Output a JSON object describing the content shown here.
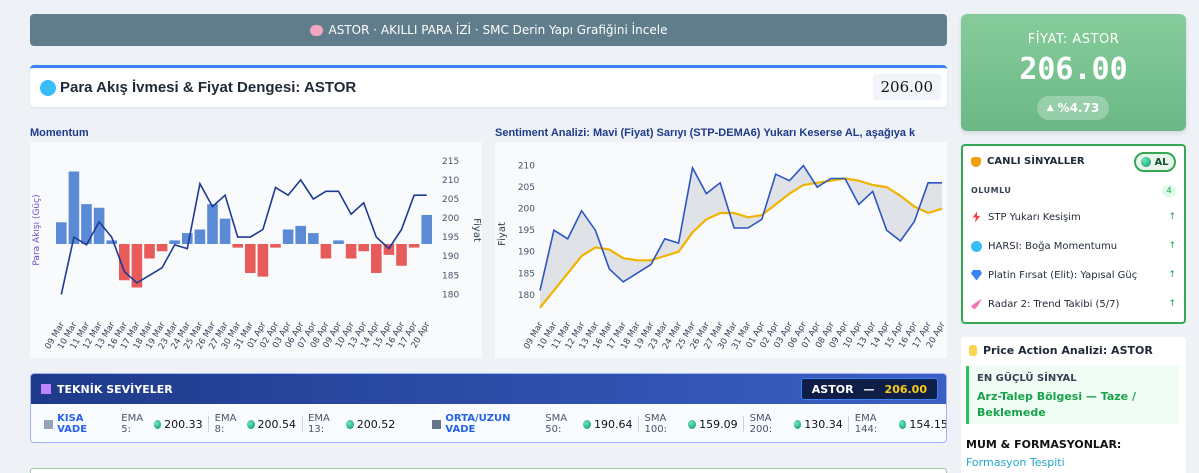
{
  "banner": {
    "text": "ASTOR · AKILLI PARA İZİ · SMC Derin Yapı Grafiğini İncele"
  },
  "flow_header": {
    "title": "Para Akış İvmesi & Fiyat Dengesi: ASTOR",
    "price": "206.00"
  },
  "charts_meta": {
    "momentum_title": "Momentum",
    "sentiment_title": "Sentiment Analizi: Mavi (Fiyat) Sarıyı (STP-DEMA6) Yukarı Keserse AL, aşağıya kese..."
  },
  "chart_data": [
    {
      "type": "bar+line",
      "title": "Momentum",
      "ylabel_left": "Para Akışı (Güç)",
      "ylabel_right": "Fiyat",
      "categories": [
        "09 Mar",
        "10 Mar",
        "11 Mar",
        "12 Mar",
        "13 Mar",
        "16 Mar",
        "17 Mar",
        "18 Mar",
        "19 Mar",
        "23 Mar",
        "24 Mar",
        "25 Mar",
        "26 Mar",
        "27 Mar",
        "30 Mar",
        "31 Mar",
        "01 Apr",
        "02 Apr",
        "03 Apr",
        "06 Apr",
        "07 Apr",
        "08 Apr",
        "09 Apr",
        "10 Apr",
        "13 Apr",
        "14 Apr",
        "15 Apr",
        "16 Apr",
        "17 Apr",
        "20 Apr"
      ],
      "series": [
        {
          "name": "Para Akışı",
          "kind": "bar",
          "values": [
            3,
            10,
            5.5,
            5,
            0.5,
            -5,
            -6,
            -2,
            -1,
            0.5,
            1.5,
            2,
            5.5,
            3.5,
            -0.5,
            -4,
            -4.5,
            -0.5,
            2,
            2.5,
            1.5,
            -2,
            0.5,
            -2,
            -1,
            -4,
            -1.5,
            -3,
            -0.5,
            4
          ]
        },
        {
          "name": "Fiyat",
          "kind": "line",
          "values": [
            180,
            195,
            193,
            199,
            195,
            186,
            183,
            185,
            187,
            193,
            192,
            209,
            203,
            206,
            195,
            195,
            197,
            208,
            206,
            210,
            205,
            207,
            207,
            201,
            204,
            195,
            192,
            197,
            206,
            206
          ]
        }
      ],
      "y_left_range": [
        -8,
        12
      ],
      "y_right_range": [
        178,
        216
      ],
      "y_right_ticks": [
        180,
        185,
        190,
        195,
        200,
        205,
        210,
        215
      ]
    },
    {
      "type": "line",
      "title": "Sentiment Analizi: Mavi (Fiyat) Sarıyı (STP-DEMA6) Yukarı Keserse AL, aşağıya kese...",
      "ylabel": "Fiyat",
      "categories": [
        "09 Mar",
        "10 Mar",
        "11 Mar",
        "12 Mar",
        "13 Mar",
        "16 Mar",
        "17 Mar",
        "18 Mar",
        "19 Mar",
        "23 Mar",
        "24 Mar",
        "25 Mar",
        "26 Mar",
        "27 Mar",
        "30 Mar",
        "31 Mar",
        "01 Apr",
        "02 Apr",
        "03 Apr",
        "06 Apr",
        "07 Apr",
        "08 Apr",
        "09 Apr",
        "10 Apr",
        "13 Apr",
        "14 Apr",
        "15 Apr",
        "16 Apr",
        "17 Apr",
        "20 Apr"
      ],
      "series": [
        {
          "name": "Fiyat",
          "color": "#2c54c4",
          "values": [
            181,
            195,
            193,
            199.5,
            195,
            186,
            183,
            185,
            187,
            193,
            192,
            209.5,
            203.5,
            206,
            195.5,
            195.5,
            197.5,
            208,
            206.5,
            210,
            205,
            207,
            207,
            201,
            204,
            195,
            192.5,
            197,
            206,
            206
          ]
        },
        {
          "name": "STP-DEMA6",
          "color": "#f0b400",
          "values": [
            177,
            181,
            185,
            189,
            191,
            190.5,
            188.5,
            188,
            188,
            189,
            190,
            194.5,
            197.5,
            199,
            199,
            198,
            198.5,
            201,
            203.5,
            205.5,
            206,
            206.5,
            207,
            206.5,
            205.5,
            205,
            203,
            200.5,
            199,
            200
          ]
        }
      ],
      "ylim": [
        176,
        212
      ],
      "yticks": [
        180,
        185,
        190,
        195,
        200,
        205,
        210
      ]
    }
  ],
  "tech": {
    "title": "TEKNİK SEVİYELER",
    "ticker": "ASTOR",
    "dash": "—",
    "price": "206.00",
    "short_label": "KISA VADE",
    "long_label": "ORTA/UZUN VADE",
    "short": [
      {
        "label": "EMA 5:",
        "value": "200.33"
      },
      {
        "label": "EMA 8:",
        "value": "200.54"
      },
      {
        "label": "EMA 13:",
        "value": "200.52"
      }
    ],
    "long": [
      {
        "label": "SMA 50:",
        "value": "190.64"
      },
      {
        "label": "SMA 100:",
        "value": "159.09"
      },
      {
        "label": "SMA 200:",
        "value": "130.34"
      },
      {
        "label": "EMA 144:",
        "value": "154.15"
      }
    ]
  },
  "price_card": {
    "label": "FİYAT: ASTOR",
    "price": "206.00",
    "change": "%4.73",
    "change_arrow": "▲"
  },
  "signals": {
    "title": "CANLI SİNYALLER",
    "badge": "AL",
    "section": "OLUMLU",
    "count": "4",
    "items": [
      {
        "label": "STP Yukarı Kesişim",
        "icon": "lightning-icon",
        "arrow": "↑"
      },
      {
        "label": "HARSI: Boğa Momentumu",
        "icon": "wave-icon",
        "arrow": "↑"
      },
      {
        "label": "Platin Fırsat (Elit): Yapısal Güç",
        "icon": "diamond-icon",
        "arrow": "↑"
      },
      {
        "label": "Radar 2: Trend Takibi (5/7)",
        "icon": "rocket-icon",
        "arrow": "↑"
      }
    ]
  },
  "price_action": {
    "title": "Price Action Analizi: ASTOR",
    "strongest_label": "EN GÜÇLÜ SİNYAL",
    "strongest_value": "Arz-Talep Bölgesi — Taze / Beklemede",
    "patterns_label": "MUM & FORMASYONLAR:",
    "patterns_value": "Formasyon Tespiti"
  },
  "colors": {
    "bar_up": "#5b8bd6",
    "bar_down": "#e85b5b",
    "price_line": "#1f3a93",
    "accent_green": "#34a853"
  }
}
